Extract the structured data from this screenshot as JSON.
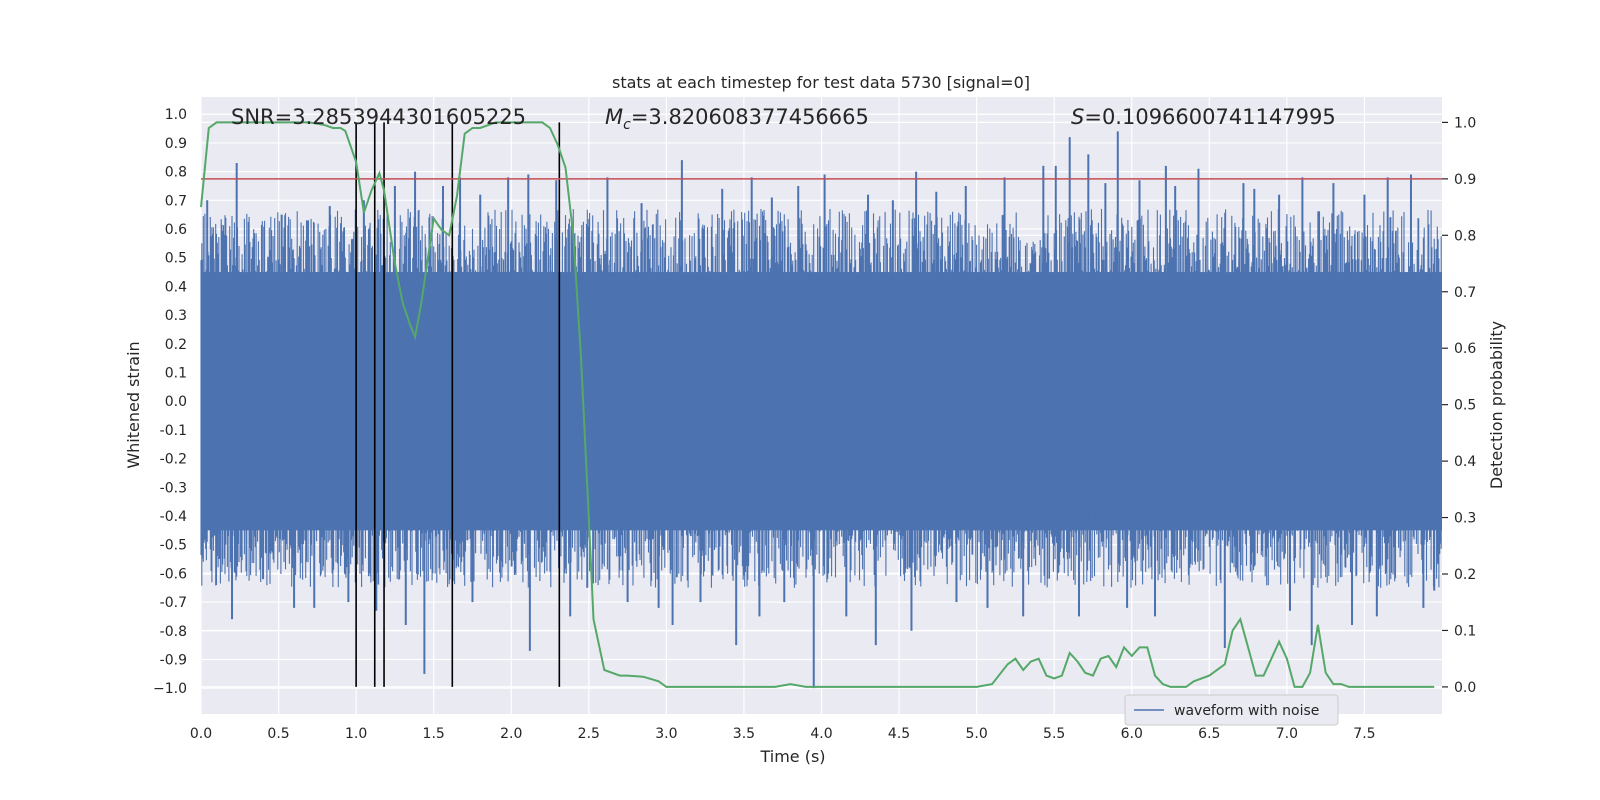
{
  "chart_data": {
    "type": "line",
    "title": "stats at each timestep for test data 5730 [signal=0]",
    "xlabel": "Time (s)",
    "ylabel_left": "Whitened strain",
    "ylabel_right": "Detection probability",
    "xlim": [
      0.0,
      8.0
    ],
    "ylim_left": [
      -1.09,
      1.06
    ],
    "ylim_right": [
      -0.048,
      1.045
    ],
    "x_ticks": [
      "0.0",
      "0.5",
      "1.0",
      "1.5",
      "2.0",
      "2.5",
      "3.0",
      "3.5",
      "4.0",
      "4.5",
      "5.0",
      "5.5",
      "6.0",
      "6.5",
      "7.0",
      "7.5"
    ],
    "y_left_ticks": [
      "1.0",
      "0.9",
      "0.8",
      "0.7",
      "0.6",
      "0.5",
      "0.4",
      "0.3",
      "0.2",
      "0.1",
      "0.0",
      "-0.1",
      "-0.2",
      "-0.3",
      "-0.4",
      "-0.5",
      "-0.6",
      "-0.7",
      "-0.8",
      "-0.9",
      "−1.0"
    ],
    "y_right_ticks": [
      "1.0",
      "0.9",
      "0.8",
      "0.7",
      "0.6",
      "0.5",
      "0.4",
      "0.3",
      "0.2",
      "0.1",
      "0.0"
    ],
    "annotations": {
      "snr": "SNR=3.2853944301605225",
      "mc_symbol": "M",
      "mc_sub": "c",
      "mc_value": "=3.820608377456665",
      "s_symbol": "S",
      "s_value": "=0.1096600741147995"
    },
    "threshold": {
      "value": 0.9,
      "color": "#c44e52"
    },
    "vertical_markers": [
      1.0,
      1.12,
      1.18,
      1.62,
      2.31
    ],
    "waveform": {
      "name": "waveform with noise",
      "color": "#4c72b0",
      "sample_count": 1600,
      "envelope_bottom": -0.45,
      "envelope_top": 0.45
    },
    "spikes": [
      [
        0.04,
        0.7
      ],
      [
        0.12,
        -0.55
      ],
      [
        0.23,
        0.83
      ],
      [
        0.2,
        -0.76
      ],
      [
        0.4,
        -0.62
      ],
      [
        0.52,
        0.65
      ],
      [
        0.6,
        -0.72
      ],
      [
        0.69,
        0.63
      ],
      [
        0.73,
        -0.72
      ],
      [
        0.83,
        0.68
      ],
      [
        0.95,
        -0.7
      ],
      [
        1.05,
        0.7
      ],
      [
        1.13,
        -0.73
      ],
      [
        1.25,
        0.75
      ],
      [
        1.38,
        0.8
      ],
      [
        1.32,
        -0.78
      ],
      [
        1.44,
        -0.95
      ],
      [
        1.56,
        0.75
      ],
      [
        1.67,
        0.78
      ],
      [
        1.8,
        0.72
      ],
      [
        1.75,
        -0.7
      ],
      [
        1.98,
        0.78
      ],
      [
        2.11,
        0.79
      ],
      [
        2.12,
        -0.87
      ],
      [
        2.29,
        0.77
      ],
      [
        2.38,
        -0.75
      ],
      [
        2.49,
        -0.65
      ],
      [
        2.62,
        0.78
      ],
      [
        2.75,
        -0.7
      ],
      [
        2.84,
        0.69
      ],
      [
        2.95,
        -0.72
      ],
      [
        3.04,
        -0.78
      ],
      [
        3.1,
        0.84
      ],
      [
        3.22,
        -0.7
      ],
      [
        3.36,
        0.74
      ],
      [
        3.45,
        -0.85
      ],
      [
        3.55,
        0.78
      ],
      [
        3.6,
        -0.75
      ],
      [
        3.68,
        0.71
      ],
      [
        3.76,
        -0.7
      ],
      [
        3.85,
        0.75
      ],
      [
        3.95,
        -1.0
      ],
      [
        4.02,
        0.79
      ],
      [
        4.16,
        -0.75
      ],
      [
        4.3,
        0.72
      ],
      [
        4.35,
        -0.85
      ],
      [
        4.46,
        0.7
      ],
      [
        4.58,
        -0.8
      ],
      [
        4.61,
        0.8
      ],
      [
        4.74,
        0.73
      ],
      [
        4.87,
        -0.7
      ],
      [
        4.93,
        0.75
      ],
      [
        5.07,
        -0.72
      ],
      [
        5.18,
        0.78
      ],
      [
        5.3,
        -0.75
      ],
      [
        5.43,
        0.82
      ],
      [
        5.51,
        0.82
      ],
      [
        5.6,
        0.92
      ],
      [
        5.66,
        -0.75
      ],
      [
        5.72,
        0.86
      ],
      [
        5.83,
        0.76
      ],
      [
        5.91,
        0.94
      ],
      [
        5.97,
        -0.72
      ],
      [
        6.05,
        0.77
      ],
      [
        6.15,
        -0.75
      ],
      [
        6.22,
        0.82
      ],
      [
        6.28,
        0.75
      ],
      [
        6.43,
        0.81
      ],
      [
        6.6,
        -0.86
      ],
      [
        6.72,
        0.76
      ],
      [
        6.79,
        0.74
      ],
      [
        6.95,
        0.72
      ],
      [
        7.02,
        -0.73
      ],
      [
        7.1,
        0.78
      ],
      [
        7.16,
        -0.85
      ],
      [
        7.3,
        0.76
      ],
      [
        7.42,
        -0.78
      ],
      [
        7.5,
        0.72
      ],
      [
        7.58,
        -0.75
      ],
      [
        7.65,
        0.78
      ],
      [
        7.8,
        0.79
      ],
      [
        7.88,
        -0.72
      ],
      [
        7.95,
        -0.66
      ]
    ],
    "detection_probability": {
      "name": "detection probability",
      "color": "#55a868",
      "x": [
        0.0,
        0.05,
        0.1,
        0.2,
        0.3,
        0.4,
        0.5,
        0.6,
        0.7,
        0.8,
        0.85,
        0.9,
        0.93,
        1.0,
        1.05,
        1.1,
        1.15,
        1.18,
        1.25,
        1.3,
        1.35,
        1.38,
        1.42,
        1.5,
        1.55,
        1.6,
        1.65,
        1.7,
        1.75,
        1.8,
        1.9,
        2.0,
        2.1,
        2.2,
        2.25,
        2.3,
        2.35,
        2.4,
        2.45,
        2.5,
        2.53,
        2.6,
        2.7,
        2.75,
        2.85,
        2.95,
        3.0,
        3.1,
        3.2,
        3.4,
        3.5,
        3.7,
        3.8,
        3.9,
        4.0,
        4.2,
        4.4,
        4.6,
        4.8,
        5.0,
        5.1,
        5.2,
        5.25,
        5.3,
        5.35,
        5.4,
        5.45,
        5.5,
        5.55,
        5.6,
        5.65,
        5.7,
        5.75,
        5.8,
        5.85,
        5.9,
        5.95,
        6.0,
        6.05,
        6.1,
        6.15,
        6.2,
        6.25,
        6.3,
        6.35,
        6.4,
        6.5,
        6.6,
        6.65,
        6.7,
        6.75,
        6.8,
        6.85,
        6.9,
        6.95,
        7.0,
        7.05,
        7.1,
        7.15,
        7.2,
        7.25,
        7.3,
        7.35,
        7.4,
        7.45,
        7.5,
        7.55,
        7.6,
        7.7,
        7.8,
        7.9,
        7.95
      ],
      "y": [
        0.85,
        0.99,
        1.0,
        1.0,
        1.0,
        1.0,
        1.0,
        1.0,
        1.0,
        0.995,
        0.99,
        0.99,
        0.985,
        0.93,
        0.84,
        0.88,
        0.91,
        0.88,
        0.75,
        0.68,
        0.64,
        0.62,
        0.68,
        0.83,
        0.81,
        0.8,
        0.87,
        0.98,
        0.99,
        0.99,
        1.0,
        1.0,
        1.0,
        1.0,
        0.99,
        0.96,
        0.92,
        0.8,
        0.58,
        0.3,
        0.12,
        0.03,
        0.02,
        0.02,
        0.018,
        0.01,
        0.0,
        0.0,
        0.0,
        0.0,
        0.0,
        0.0,
        0.005,
        0.0,
        0.0,
        0.0,
        0.0,
        0.0,
        0.0,
        0.0,
        0.005,
        0.04,
        0.05,
        0.03,
        0.045,
        0.05,
        0.02,
        0.015,
        0.02,
        0.06,
        0.045,
        0.025,
        0.02,
        0.05,
        0.055,
        0.035,
        0.07,
        0.055,
        0.07,
        0.07,
        0.02,
        0.005,
        0.0,
        0.0,
        0.0,
        0.01,
        0.02,
        0.04,
        0.1,
        0.12,
        0.07,
        0.02,
        0.02,
        0.05,
        0.08,
        0.05,
        0.0,
        0.0,
        0.025,
        0.11,
        0.025,
        0.005,
        0.005,
        0.0,
        0.0,
        0.0,
        0.0,
        0.0,
        0.0,
        0.0,
        0.0,
        0.0
      ]
    },
    "legend": {
      "position": "lower-right",
      "entries": [
        "waveform with noise"
      ]
    },
    "grid": true
  }
}
